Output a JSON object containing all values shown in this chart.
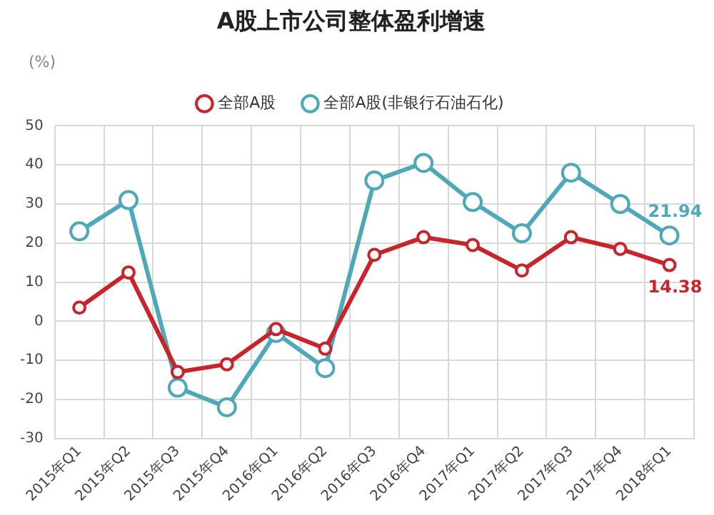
{
  "chart_data": {
    "type": "line",
    "title": "A股上市公司整体盈利增速",
    "ylabel": "(%)",
    "categories": [
      "2015年Q1",
      "2015年Q2",
      "2015年Q3",
      "2015年Q4",
      "2016年Q1",
      "2016年Q2",
      "2016年Q3",
      "2016年Q4",
      "2017年Q1",
      "2017年Q2",
      "2017年Q3",
      "2017年Q4",
      "2018年Q1"
    ],
    "series": [
      {
        "name": "全部A股",
        "color": "#c8242b",
        "values": [
          3.5,
          12.5,
          -13,
          -11,
          -2,
          -7,
          17,
          21.5,
          19.5,
          13,
          21.5,
          18.5,
          14.38
        ],
        "value_labels": [
          null,
          null,
          null,
          null,
          null,
          null,
          null,
          null,
          null,
          null,
          null,
          null,
          "14.38"
        ]
      },
      {
        "name": "全部A股(非银行石油石化)",
        "color": "#4fa8b8",
        "values": [
          23,
          31,
          -17,
          -22,
          -3,
          -12,
          36,
          40.5,
          30.5,
          22.5,
          38,
          30,
          21.94
        ],
        "value_labels": [
          null,
          null,
          null,
          null,
          null,
          null,
          null,
          null,
          null,
          null,
          null,
          null,
          "21.94"
        ]
      }
    ],
    "ylim": [
      -30,
      50
    ],
    "yticks": [
      -30,
      -20,
      -10,
      0,
      10,
      20,
      30,
      40,
      50
    ],
    "grid": true,
    "legend": "top",
    "marker": "circle",
    "line_style": "solid"
  }
}
